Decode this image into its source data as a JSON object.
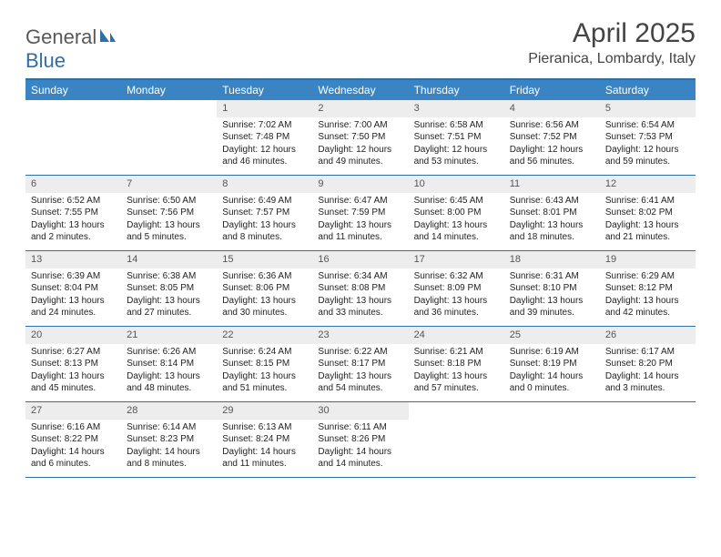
{
  "logo": {
    "part1": "General",
    "part2": "Blue"
  },
  "title": "April 2025",
  "location": "Pieranica, Lombardy, Italy",
  "colors": {
    "header_bg": "#3b84c4",
    "border": "#2f6fa7",
    "daynum_bg": "#ededed",
    "text": "#222222"
  },
  "weekdays": [
    "Sunday",
    "Monday",
    "Tuesday",
    "Wednesday",
    "Thursday",
    "Friday",
    "Saturday"
  ],
  "weeks": [
    [
      null,
      null,
      {
        "n": "1",
        "sr": "7:02 AM",
        "ss": "7:48 PM",
        "dl": "12 hours and 46 minutes."
      },
      {
        "n": "2",
        "sr": "7:00 AM",
        "ss": "7:50 PM",
        "dl": "12 hours and 49 minutes."
      },
      {
        "n": "3",
        "sr": "6:58 AM",
        "ss": "7:51 PM",
        "dl": "12 hours and 53 minutes."
      },
      {
        "n": "4",
        "sr": "6:56 AM",
        "ss": "7:52 PM",
        "dl": "12 hours and 56 minutes."
      },
      {
        "n": "5",
        "sr": "6:54 AM",
        "ss": "7:53 PM",
        "dl": "12 hours and 59 minutes."
      }
    ],
    [
      {
        "n": "6",
        "sr": "6:52 AM",
        "ss": "7:55 PM",
        "dl": "13 hours and 2 minutes."
      },
      {
        "n": "7",
        "sr": "6:50 AM",
        "ss": "7:56 PM",
        "dl": "13 hours and 5 minutes."
      },
      {
        "n": "8",
        "sr": "6:49 AM",
        "ss": "7:57 PM",
        "dl": "13 hours and 8 minutes."
      },
      {
        "n": "9",
        "sr": "6:47 AM",
        "ss": "7:59 PM",
        "dl": "13 hours and 11 minutes."
      },
      {
        "n": "10",
        "sr": "6:45 AM",
        "ss": "8:00 PM",
        "dl": "13 hours and 14 minutes."
      },
      {
        "n": "11",
        "sr": "6:43 AM",
        "ss": "8:01 PM",
        "dl": "13 hours and 18 minutes."
      },
      {
        "n": "12",
        "sr": "6:41 AM",
        "ss": "8:02 PM",
        "dl": "13 hours and 21 minutes."
      }
    ],
    [
      {
        "n": "13",
        "sr": "6:39 AM",
        "ss": "8:04 PM",
        "dl": "13 hours and 24 minutes."
      },
      {
        "n": "14",
        "sr": "6:38 AM",
        "ss": "8:05 PM",
        "dl": "13 hours and 27 minutes."
      },
      {
        "n": "15",
        "sr": "6:36 AM",
        "ss": "8:06 PM",
        "dl": "13 hours and 30 minutes."
      },
      {
        "n": "16",
        "sr": "6:34 AM",
        "ss": "8:08 PM",
        "dl": "13 hours and 33 minutes."
      },
      {
        "n": "17",
        "sr": "6:32 AM",
        "ss": "8:09 PM",
        "dl": "13 hours and 36 minutes."
      },
      {
        "n": "18",
        "sr": "6:31 AM",
        "ss": "8:10 PM",
        "dl": "13 hours and 39 minutes."
      },
      {
        "n": "19",
        "sr": "6:29 AM",
        "ss": "8:12 PM",
        "dl": "13 hours and 42 minutes."
      }
    ],
    [
      {
        "n": "20",
        "sr": "6:27 AM",
        "ss": "8:13 PM",
        "dl": "13 hours and 45 minutes."
      },
      {
        "n": "21",
        "sr": "6:26 AM",
        "ss": "8:14 PM",
        "dl": "13 hours and 48 minutes."
      },
      {
        "n": "22",
        "sr": "6:24 AM",
        "ss": "8:15 PM",
        "dl": "13 hours and 51 minutes."
      },
      {
        "n": "23",
        "sr": "6:22 AM",
        "ss": "8:17 PM",
        "dl": "13 hours and 54 minutes."
      },
      {
        "n": "24",
        "sr": "6:21 AM",
        "ss": "8:18 PM",
        "dl": "13 hours and 57 minutes."
      },
      {
        "n": "25",
        "sr": "6:19 AM",
        "ss": "8:19 PM",
        "dl": "14 hours and 0 minutes."
      },
      {
        "n": "26",
        "sr": "6:17 AM",
        "ss": "8:20 PM",
        "dl": "14 hours and 3 minutes."
      }
    ],
    [
      {
        "n": "27",
        "sr": "6:16 AM",
        "ss": "8:22 PM",
        "dl": "14 hours and 6 minutes."
      },
      {
        "n": "28",
        "sr": "6:14 AM",
        "ss": "8:23 PM",
        "dl": "14 hours and 8 minutes."
      },
      {
        "n": "29",
        "sr": "6:13 AM",
        "ss": "8:24 PM",
        "dl": "14 hours and 11 minutes."
      },
      {
        "n": "30",
        "sr": "6:11 AM",
        "ss": "8:26 PM",
        "dl": "14 hours and 14 minutes."
      },
      null,
      null,
      null
    ]
  ],
  "labels": {
    "sunrise": "Sunrise:",
    "sunset": "Sunset:",
    "daylight": "Daylight:"
  }
}
